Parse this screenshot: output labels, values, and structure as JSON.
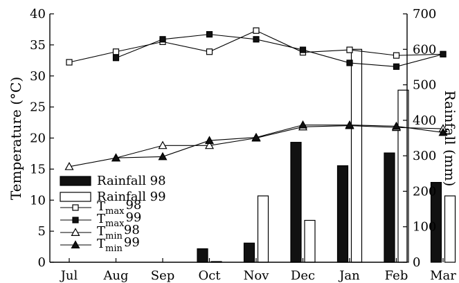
{
  "chart_data": {
    "type": "bar",
    "categories": [
      "Jul",
      "Aug",
      "Sep",
      "Oct",
      "Nov",
      "Dec",
      "Jan",
      "Feb",
      "Mar"
    ],
    "xlabel": "",
    "ylabel_left": "Temperature (°C)",
    "ylabel_right": "Rainfall (mm)",
    "ylim_left": [
      0,
      40
    ],
    "yticks_left": [
      0,
      5,
      10,
      15,
      20,
      25,
      30,
      35,
      40
    ],
    "ylim_right": [
      0,
      700
    ],
    "yticks_right": [
      0,
      100,
      200,
      300,
      400,
      500,
      600,
      700
    ],
    "grid": false,
    "legend_position": "left",
    "bar_series": [
      {
        "name": "Rainfall 98",
        "axis": "right",
        "fill": "#111111",
        "values": [
          0,
          0,
          0,
          38,
          54,
          338,
          272,
          308,
          225
        ]
      },
      {
        "name": "Rainfall 99",
        "axis": "right",
        "fill": "#ffffff",
        "values": [
          0,
          0,
          0,
          2,
          187,
          118,
          600,
          485,
          187
        ]
      }
    ],
    "line_series": [
      {
        "base": "T",
        "sub": "max",
        "suffix": "98",
        "marker": "square-open",
        "values": [
          32.2,
          33.9,
          35.5,
          33.9,
          37.3,
          33.8,
          34.2,
          33.3,
          33.5
        ]
      },
      {
        "base": "T",
        "sub": "max",
        "suffix": "99",
        "marker": "square-filled",
        "values": [
          null,
          32.9,
          35.9,
          36.7,
          35.9,
          34.2,
          32.1,
          31.5,
          33.5
        ]
      },
      {
        "base": "T",
        "sub": "min",
        "suffix": "98",
        "marker": "triangle-open",
        "values": [
          15.4,
          16.8,
          18.8,
          18.8,
          20.0,
          21.8,
          22.0,
          21.7,
          21.5
        ]
      },
      {
        "base": "T",
        "sub": "min",
        "suffix": "99",
        "marker": "triangle-filled",
        "values": [
          null,
          16.8,
          17.0,
          19.6,
          20.1,
          22.1,
          22.1,
          21.9,
          20.9
        ]
      }
    ]
  }
}
